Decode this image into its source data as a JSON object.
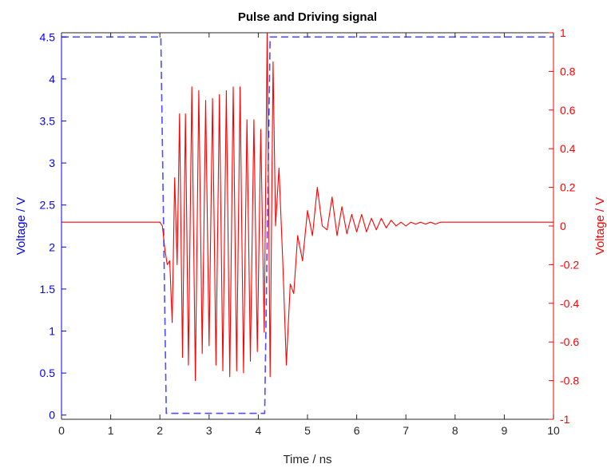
{
  "chart_data": {
    "type": "line",
    "title": "Pulse and Driving signal",
    "xlabel": "Time / ns",
    "ylabel_left": "Voltage / V",
    "ylabel_right": "Voltage / V",
    "xlim": [
      0,
      10
    ],
    "ylim_left": [
      -0.05,
      4.55
    ],
    "ylim_right": [
      -1,
      1
    ],
    "xticks": [
      "0",
      "1",
      "2",
      "3",
      "4",
      "5",
      "6",
      "7",
      "8",
      "9",
      "10"
    ],
    "yticks_left": [
      "0",
      "0.5",
      "1",
      "1.5",
      "2",
      "2.5",
      "3",
      "3.5",
      "4",
      "4.5"
    ],
    "yticks_right": [
      "-1",
      "-0.8",
      "-0.6",
      "-0.4",
      "-0.2",
      "0",
      "0.2",
      "0.4",
      "0.6",
      "0.8",
      "1"
    ],
    "grid": false,
    "colors": {
      "left_axis": "#0000ff",
      "right_axis": "#ff0000",
      "pulse": "#4d4dff",
      "driving": "#ff0000"
    },
    "series": [
      {
        "axis": "left",
        "style": "dashed",
        "x": [
          0,
          2.02,
          2.13,
          4.13,
          4.24,
          10
        ],
        "y": [
          4.5,
          4.5,
          0.02,
          0.02,
          4.5,
          4.5
        ]
      },
      {
        "axis": "right",
        "style": "solid",
        "x": [
          0,
          2.0,
          2.05,
          2.1,
          2.15,
          2.2,
          2.25,
          2.3,
          2.35,
          2.4,
          2.46,
          2.52,
          2.58,
          2.65,
          2.72,
          2.79,
          2.86,
          2.93,
          3.0,
          3.07,
          3.14,
          3.21,
          3.28,
          3.35,
          3.42,
          3.49,
          3.56,
          3.63,
          3.7,
          3.77,
          3.84,
          3.91,
          3.98,
          4.05,
          4.12,
          4.18,
          4.24,
          4.3,
          4.35,
          4.42,
          4.5,
          4.57,
          4.65,
          4.72,
          4.8,
          4.9,
          5.0,
          5.1,
          5.2,
          5.3,
          5.4,
          5.5,
          5.6,
          5.7,
          5.8,
          5.9,
          6.0,
          6.1,
          6.2,
          6.3,
          6.4,
          6.5,
          6.6,
          6.7,
          6.8,
          6.9,
          7.0,
          7.1,
          7.2,
          7.3,
          7.4,
          7.5,
          7.6,
          7.7,
          7.8,
          7.9,
          8.0,
          8.1,
          8.2,
          8.3,
          8.4,
          8.5,
          8.6,
          8.7,
          8.8,
          8.9,
          9.0,
          10
        ],
        "y": [
          0.02,
          0.02,
          0.0,
          -0.12,
          -0.2,
          -0.18,
          -0.5,
          0.25,
          -0.2,
          0.58,
          -0.68,
          0.58,
          -0.72,
          0.72,
          -0.8,
          0.7,
          -0.66,
          0.65,
          -0.62,
          0.66,
          -0.72,
          0.68,
          -0.75,
          0.7,
          -0.78,
          0.72,
          -0.75,
          0.72,
          -0.76,
          0.55,
          -0.7,
          0.55,
          -0.65,
          0.5,
          -0.55,
          1.0,
          -0.78,
          0.85,
          0.0,
          0.3,
          -0.2,
          -0.72,
          -0.3,
          -0.35,
          -0.05,
          -0.18,
          0.08,
          -0.05,
          0.2,
          0.0,
          -0.02,
          0.15,
          -0.05,
          0.1,
          -0.04,
          0.06,
          -0.03,
          0.06,
          -0.03,
          0.04,
          -0.02,
          0.04,
          -0.01,
          0.03,
          0.0,
          0.02,
          0.0,
          0.02,
          0.01,
          0.02,
          0.01,
          0.02,
          0.01,
          0.02,
          0.02,
          0.02,
          0.02,
          0.02,
          0.02,
          0.02,
          0.02,
          0.02,
          0.02,
          0.02,
          0.02,
          0.02,
          0.02,
          0.02
        ]
      }
    ]
  }
}
